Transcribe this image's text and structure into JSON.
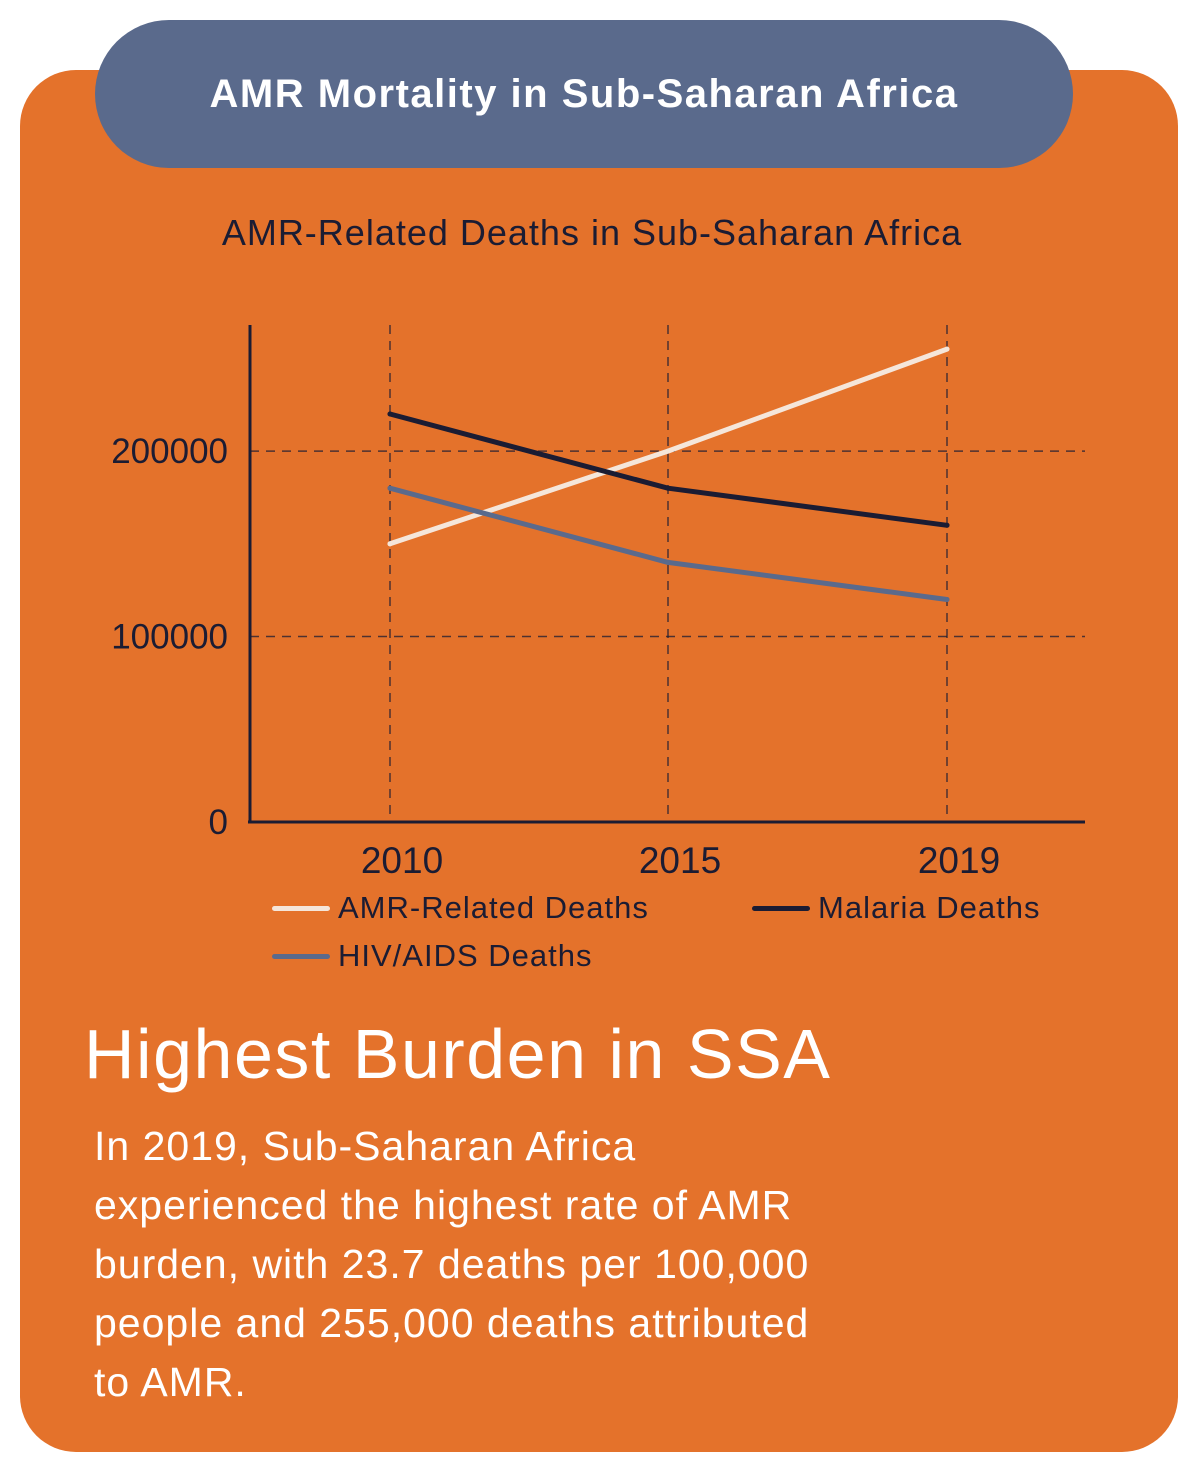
{
  "header": {
    "title": "AMR Mortality in Sub-Saharan Africa"
  },
  "colors": {
    "card_background": "#e4722b",
    "header_background": "#5a6a8c",
    "amr_series": "#f5e6da",
    "malaria_series": "#1b1c33",
    "hiv_series": "#5a6a8c"
  },
  "chart_data": {
    "type": "line",
    "title": "AMR-Related Deaths in Sub-Saharan Africa",
    "xlabel": "",
    "ylabel": "",
    "x": [
      "2010",
      "2015",
      "2019"
    ],
    "ylim": [
      0,
      268000
    ],
    "yticks": [
      0,
      100000,
      200000
    ],
    "ytick_labels": [
      "0",
      "100000",
      "200000"
    ],
    "grid": "dashed at x ticks and y ticks",
    "legend_position": "bottom",
    "series": [
      {
        "name": "AMR-Related Deaths",
        "color": "#f5e6da",
        "values": [
          150000,
          200000,
          255000
        ]
      },
      {
        "name": "Malaria Deaths",
        "color": "#1b1c33",
        "values": [
          220000,
          180000,
          160000
        ]
      },
      {
        "name": "HIV/AIDS Deaths",
        "color": "#5a6a8c",
        "values": [
          180000,
          140000,
          120000
        ]
      }
    ]
  },
  "highlight": {
    "title": "Highest Burden in SSA",
    "body_lines": [
      "In 2019, Sub-Saharan Africa",
      "experienced the highest rate of AMR",
      "burden, with 23.7 deaths per 100,000",
      "people and 255,000 deaths attributed",
      "to AMR."
    ]
  }
}
